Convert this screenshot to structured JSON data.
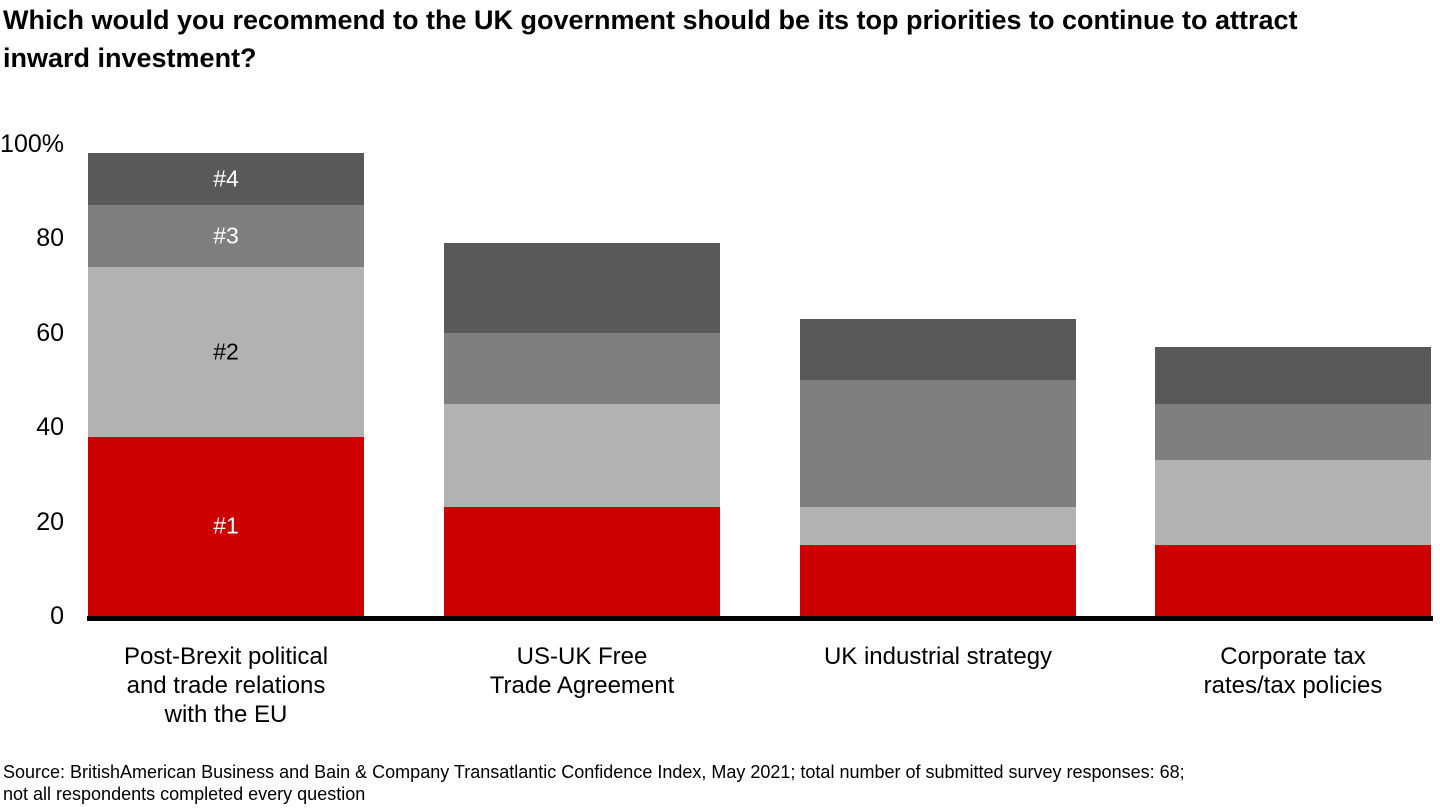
{
  "header": {
    "title": "Which would you recommend to the UK government should be its top priorities to continue to attract inward investment?"
  },
  "footer": {
    "source_lines": [
      "Source: BritishAmerican Business and Bain & Company Transatlantic Confidence Index, May 2021; total number of submitted survey responses: 68;",
      "not all respondents completed every question"
    ]
  },
  "chart_data": {
    "type": "bar",
    "stacked": true,
    "title": "Which would you recommend to the UK government should be its top priorities to continue to attract inward investment?",
    "unit": "%",
    "categories": [
      "Post-Brexit political and trade relations with the EU",
      "US-UK Free Trade Agreement",
      "UK industrial strategy",
      "Corporate tax rates/tax policies"
    ],
    "categories_display": [
      [
        "Post-Brexit political",
        "and trade relations",
        "with the EU"
      ],
      [
        "US-UK Free",
        "Trade Agreement"
      ],
      [
        "UK industrial strategy"
      ],
      [
        "Corporate tax",
        "rates/tax policies"
      ]
    ],
    "series": [
      {
        "name": "#1",
        "values": [
          38,
          23,
          15,
          15
        ],
        "color": "#CC0000",
        "label_color": "#FFFFFF"
      },
      {
        "name": "#2",
        "values": [
          36,
          22,
          8,
          18
        ],
        "color": "#B2B2B2",
        "label_color": "#000000"
      },
      {
        "name": "#3",
        "values": [
          13,
          15,
          27,
          12
        ],
        "color": "#7F7F7F",
        "label_color": "#FFFFFF"
      },
      {
        "name": "#4",
        "values": [
          11,
          19,
          13,
          12
        ],
        "color": "#595959",
        "label_color": "#FFFFFF"
      }
    ],
    "bar_totals": [
      98,
      79,
      63,
      57
    ],
    "segment_labels_bar_index": 0,
    "xlabel": "",
    "ylabel": "",
    "ylim": [
      0,
      100
    ],
    "yticks": [
      {
        "value": 0,
        "label": "0"
      },
      {
        "value": 20,
        "label": "20"
      },
      {
        "value": 40,
        "label": "40"
      },
      {
        "value": 60,
        "label": "60"
      },
      {
        "value": 80,
        "label": "80"
      },
      {
        "value": 100,
        "label": "100%"
      }
    ],
    "grid": "off",
    "legend": "none",
    "axis_color": "#000000"
  }
}
